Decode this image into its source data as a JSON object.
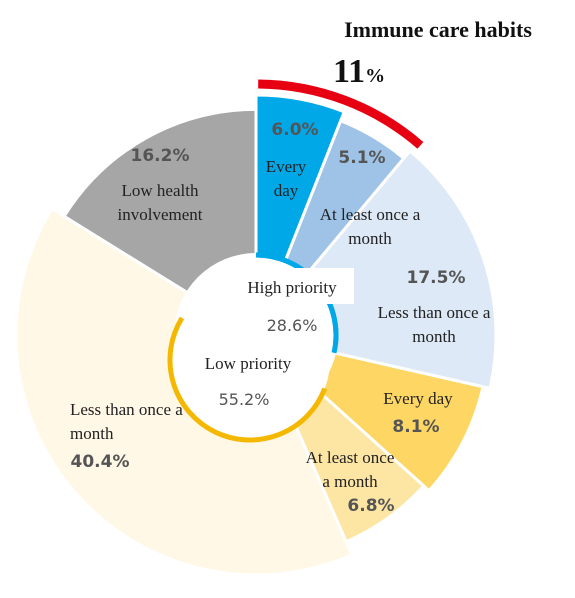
{
  "chart_data": {
    "type": "pie",
    "title": "Immune care habits",
    "highlight_value": "11",
    "highlight_unit": "%",
    "highlight_color": "#e60012",
    "slices": [
      {
        "label": "Every day",
        "value": 6.0,
        "display": "6.0%",
        "color": "#00a8e8",
        "label_lines": [
          "Every",
          "day"
        ]
      },
      {
        "label": "At least once a month",
        "value": 5.1,
        "display": "5.1%",
        "color": "#9ec3e6",
        "label_lines": [
          "At least once a",
          "month"
        ]
      },
      {
        "label": "Less than once a month",
        "value": 17.5,
        "display": "17.5%",
        "color": "#dde9f6",
        "label_lines": [
          "Less than once a",
          "month"
        ]
      },
      {
        "label": "Every day",
        "value": 8.1,
        "display": "8.1%",
        "color": "#fdd663",
        "label_lines": [
          "Every day"
        ]
      },
      {
        "label": "At least once a month",
        "value": 6.8,
        "display": "6.8%",
        "color": "#fde6a4",
        "label_lines": [
          "At least once",
          "a month"
        ]
      },
      {
        "label": "Less than once a month",
        "value": 40.4,
        "display": "40.4%",
        "color": "#fff8e6",
        "label_lines": [
          "Less than once a",
          "month"
        ]
      },
      {
        "label": "Low health involvement",
        "value": 16.2,
        "display": "16.2%",
        "color": "#a6a6a6",
        "label_lines": [
          "Low health",
          "involvement"
        ]
      }
    ],
    "groups": [
      {
        "label": "High priority",
        "display": "28.6%",
        "color": "#00a8e8"
      },
      {
        "label": "Low priority",
        "display": "55.2%",
        "color": "#f5b800"
      }
    ]
  }
}
